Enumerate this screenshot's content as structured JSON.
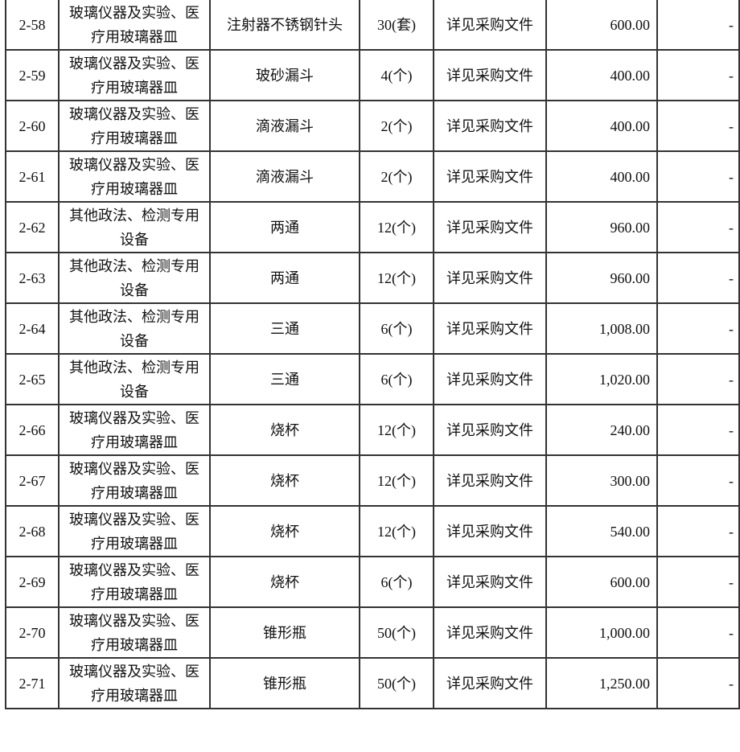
{
  "rows": [
    {
      "no": "2-58",
      "category": "玻璃仪器及实验、医疗用玻璃器皿",
      "name": "注射器不锈钢针头",
      "qty": "30(套)",
      "spec": "详见采购文件",
      "amount": "600.00",
      "remark": "-"
    },
    {
      "no": "2-59",
      "category": "玻璃仪器及实验、医疗用玻璃器皿",
      "name": "玻砂漏斗",
      "qty": "4(个)",
      "spec": "详见采购文件",
      "amount": "400.00",
      "remark": "-"
    },
    {
      "no": "2-60",
      "category": "玻璃仪器及实验、医疗用玻璃器皿",
      "name": "滴液漏斗",
      "qty": "2(个)",
      "spec": "详见采购文件",
      "amount": "400.00",
      "remark": "-"
    },
    {
      "no": "2-61",
      "category": "玻璃仪器及实验、医疗用玻璃器皿",
      "name": "滴液漏斗",
      "qty": "2(个)",
      "spec": "详见采购文件",
      "amount": "400.00",
      "remark": "-"
    },
    {
      "no": "2-62",
      "category": "其他政法、检测专用设备",
      "name": "两通",
      "qty": "12(个)",
      "spec": "详见采购文件",
      "amount": "960.00",
      "remark": "-"
    },
    {
      "no": "2-63",
      "category": "其他政法、检测专用设备",
      "name": "两通",
      "qty": "12(个)",
      "spec": "详见采购文件",
      "amount": "960.00",
      "remark": "-"
    },
    {
      "no": "2-64",
      "category": "其他政法、检测专用设备",
      "name": "三通",
      "qty": "6(个)",
      "spec": "详见采购文件",
      "amount": "1,008.00",
      "remark": "-"
    },
    {
      "no": "2-65",
      "category": "其他政法、检测专用设备",
      "name": "三通",
      "qty": "6(个)",
      "spec": "详见采购文件",
      "amount": "1,020.00",
      "remark": "-"
    },
    {
      "no": "2-66",
      "category": "玻璃仪器及实验、医疗用玻璃器皿",
      "name": "烧杯",
      "qty": "12(个)",
      "spec": "详见采购文件",
      "amount": "240.00",
      "remark": "-"
    },
    {
      "no": "2-67",
      "category": "玻璃仪器及实验、医疗用玻璃器皿",
      "name": "烧杯",
      "qty": "12(个)",
      "spec": "详见采购文件",
      "amount": "300.00",
      "remark": "-"
    },
    {
      "no": "2-68",
      "category": "玻璃仪器及实验、医疗用玻璃器皿",
      "name": "烧杯",
      "qty": "12(个)",
      "spec": "详见采购文件",
      "amount": "540.00",
      "remark": "-"
    },
    {
      "no": "2-69",
      "category": "玻璃仪器及实验、医疗用玻璃器皿",
      "name": "烧杯",
      "qty": "6(个)",
      "spec": "详见采购文件",
      "amount": "600.00",
      "remark": "-"
    },
    {
      "no": "2-70",
      "category": "玻璃仪器及实验、医疗用玻璃器皿",
      "name": "锥形瓶",
      "qty": "50(个)",
      "spec": "详见采购文件",
      "amount": "1,000.00",
      "remark": "-"
    },
    {
      "no": "2-71",
      "category": "玻璃仪器及实验、医疗用玻璃器皿",
      "name": "锥形瓶",
      "qty": "50(个)",
      "spec": "详见采购文件",
      "amount": "1,250.00",
      "remark": "-"
    }
  ]
}
